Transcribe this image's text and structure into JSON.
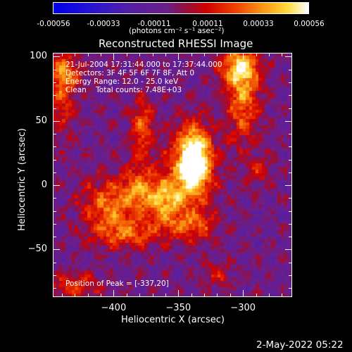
{
  "colorbar": {
    "tick_labels": [
      "-0.00056",
      "-0.00033",
      "-0.00011",
      "0.00011",
      "0.00033",
      "0.00056"
    ],
    "units": "(photons cm⁻² s⁻¹ asec⁻²)"
  },
  "chart_data": {
    "type": "heatmap",
    "title": "Reconstructed RHESSI Image",
    "xlabel": "Heliocentric X (arcsec)",
    "ylabel": "Heliocentric Y (arcsec)",
    "xlim": [
      -447,
      -262
    ],
    "ylim": [
      -87,
      103
    ],
    "x_ticks": [
      -400,
      -350,
      -300
    ],
    "y_ticks": [
      -50,
      0,
      50,
      100
    ],
    "color_range": [
      -0.00056,
      0.00056
    ],
    "peak": [
      -337,
      20
    ],
    "sources": [
      {
        "x": -337,
        "y": 20,
        "amp": 1.0,
        "sx": 8,
        "sy": 16
      },
      {
        "x": -342,
        "y": 10,
        "amp": 0.55,
        "sx": 14,
        "sy": 25
      },
      {
        "x": -360,
        "y": -12,
        "amp": 0.6,
        "sx": 9,
        "sy": 12
      },
      {
        "x": -380,
        "y": -5,
        "amp": 0.55,
        "sx": 10,
        "sy": 14
      },
      {
        "x": -405,
        "y": -15,
        "amp": 0.55,
        "sx": 14,
        "sy": 14
      },
      {
        "x": -390,
        "y": -38,
        "amp": 0.5,
        "sx": 18,
        "sy": 8
      },
      {
        "x": -340,
        "y": -32,
        "amp": 0.42,
        "sx": 14,
        "sy": 8
      },
      {
        "x": -378,
        "y": 45,
        "amp": 0.55,
        "sx": 6,
        "sy": 16
      },
      {
        "x": -300,
        "y": 70,
        "amp": 0.62,
        "sx": 9,
        "sy": 26
      },
      {
        "x": -303,
        "y": 92,
        "amp": 0.55,
        "sx": 11,
        "sy": 10
      },
      {
        "x": -440,
        "y": 72,
        "amp": 0.45,
        "sx": 7,
        "sy": 22
      },
      {
        "x": -430,
        "y": -78,
        "amp": 0.4,
        "sx": 16,
        "sy": 7
      },
      {
        "x": -320,
        "y": -70,
        "amp": 0.3,
        "sx": 8,
        "sy": 8
      },
      {
        "x": -287,
        "y": 10,
        "amp": 0.28,
        "sx": 7,
        "sy": 8
      },
      {
        "x": -435,
        "y": 88,
        "amp": 0.38,
        "sx": 9,
        "sy": 8
      }
    ]
  },
  "annotations": {
    "time_range": "21-Jul-2004 17:31:44.000 to 17:37:44.000",
    "detectors": "Detectors: 3F 4F 5F 6F 7F 8F, Att 0",
    "energy_range": "Energy Range: 12.0 - 25.0 keV",
    "clean_line": "Clean    Total counts: 7.48E+03",
    "peak_position": "Position of Peak = [-337,20]"
  },
  "footer": {
    "timestamp": "2-May-2022 05:22"
  }
}
